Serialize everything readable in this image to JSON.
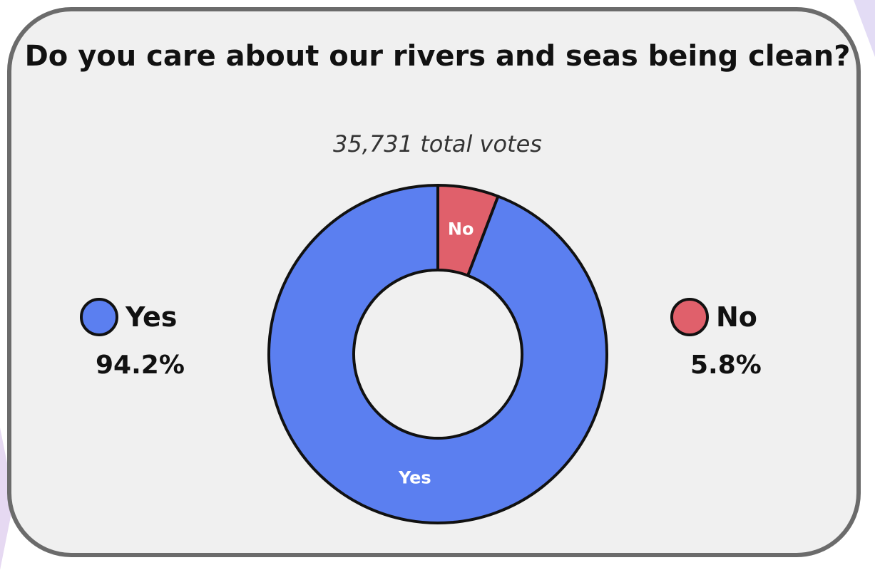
{
  "chart_data": {
    "type": "pie",
    "style": "donut",
    "title": "Do you care about our rivers and seas being clean?",
    "subtitle": "35,731 total votes",
    "slices": [
      {
        "label": "Yes",
        "value": 94.2,
        "display": "94.2%",
        "color": "#5b7ff0"
      },
      {
        "label": "No",
        "value": 5.8,
        "display": "5.8%",
        "color": "#e0606b"
      }
    ],
    "legend_placement": "sides"
  }
}
